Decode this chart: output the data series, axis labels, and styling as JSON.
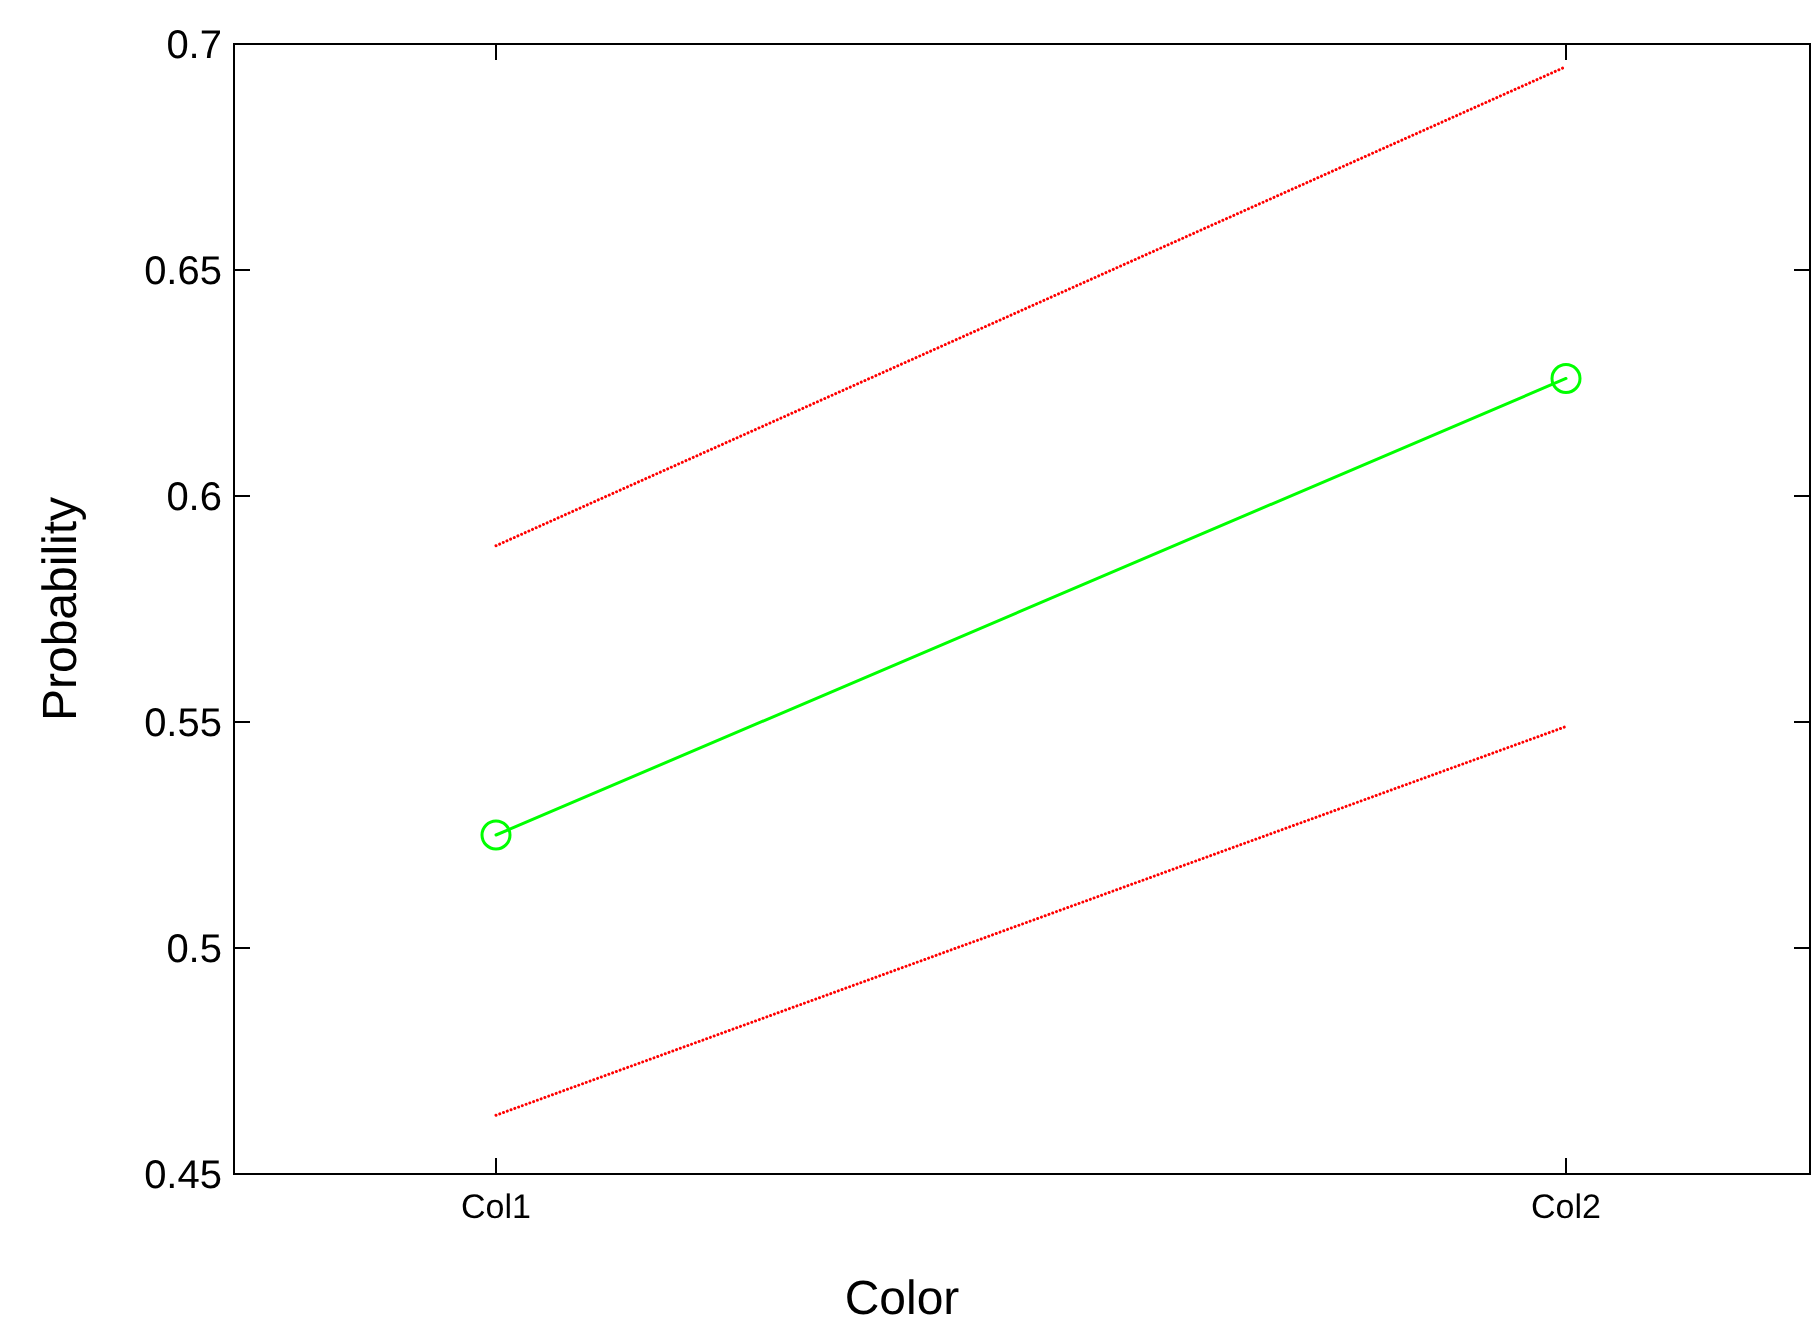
{
  "chart_data": {
    "type": "line",
    "xlabel": "Color",
    "ylabel": "Probability",
    "categories": [
      "Col1",
      "Col2"
    ],
    "series": [
      {
        "color": "#ff0000",
        "values": [
          0.589,
          0.695
        ],
        "marker": "none",
        "line_style": "dotted"
      },
      {
        "color": "#ff0000",
        "values": [
          0.463,
          0.549
        ],
        "marker": "none",
        "line_style": "dotted"
      },
      {
        "color": "#00ff00",
        "values": [
          0.525,
          0.626
        ],
        "marker": "circle",
        "line_style": "solid"
      }
    ],
    "ylim": [
      0.45,
      0.7
    ],
    "yticks": [
      0.45,
      0.5,
      0.55,
      0.6,
      0.65,
      0.7
    ],
    "grid": false
  }
}
